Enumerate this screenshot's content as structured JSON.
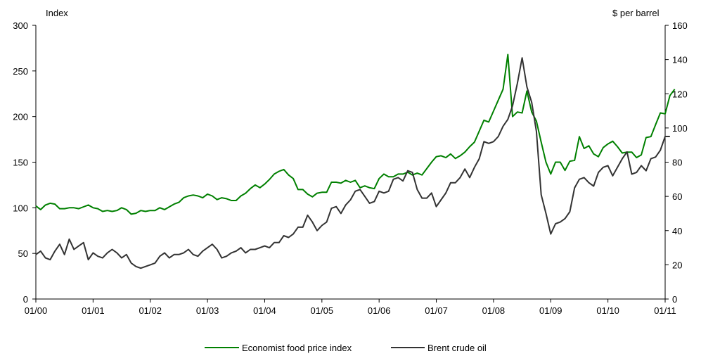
{
  "chart_data": {
    "type": "line",
    "left_axis": {
      "title": "Index",
      "range": [
        0,
        300
      ],
      "ticks": [
        0,
        50,
        100,
        150,
        200,
        250,
        300
      ]
    },
    "right_axis": {
      "title": "$ per barrel",
      "range": [
        0,
        160
      ],
      "ticks": [
        0,
        20,
        40,
        60,
        80,
        100,
        120,
        140,
        160
      ]
    },
    "x_axis": {
      "range": [
        "2000-01",
        "2011-01"
      ],
      "tick_labels": [
        "01/00",
        "01/01",
        "01/02",
        "01/03",
        "01/04",
        "01/05",
        "01/06",
        "01/07",
        "01/08",
        "01/09",
        "01/10",
        "01/11"
      ]
    },
    "grid": false,
    "legend_position": "bottom",
    "series": [
      {
        "name": "Economist food price index",
        "axis": "left",
        "color": "#008000",
        "points": [
          [
            "2000-01",
            102
          ],
          [
            "2000-02",
            98
          ],
          [
            "2000-03",
            103
          ],
          [
            "2000-04",
            105
          ],
          [
            "2000-05",
            104
          ],
          [
            "2000-06",
            99
          ],
          [
            "2000-07",
            99
          ],
          [
            "2000-08",
            100
          ],
          [
            "2000-09",
            100
          ],
          [
            "2000-10",
            99
          ],
          [
            "2000-11",
            101
          ],
          [
            "2000-12",
            103
          ],
          [
            "2001-01",
            100
          ],
          [
            "2001-02",
            99
          ],
          [
            "2001-03",
            96
          ],
          [
            "2001-04",
            97
          ],
          [
            "2001-05",
            96
          ],
          [
            "2001-06",
            97
          ],
          [
            "2001-07",
            100
          ],
          [
            "2001-08",
            98
          ],
          [
            "2001-09",
            93
          ],
          [
            "2001-10",
            94
          ],
          [
            "2001-11",
            97
          ],
          [
            "2001-12",
            96
          ],
          [
            "2002-01",
            97
          ],
          [
            "2002-02",
            97
          ],
          [
            "2002-03",
            100
          ],
          [
            "2002-04",
            98
          ],
          [
            "2002-05",
            101
          ],
          [
            "2002-06",
            104
          ],
          [
            "2002-07",
            106
          ],
          [
            "2002-08",
            111
          ],
          [
            "2002-09",
            113
          ],
          [
            "2002-10",
            114
          ],
          [
            "2002-11",
            113
          ],
          [
            "2002-12",
            111
          ],
          [
            "2003-01",
            115
          ],
          [
            "2003-02",
            113
          ],
          [
            "2003-03",
            109
          ],
          [
            "2003-04",
            111
          ],
          [
            "2003-05",
            110
          ],
          [
            "2003-06",
            108
          ],
          [
            "2003-07",
            108
          ],
          [
            "2003-08",
            113
          ],
          [
            "2003-09",
            116
          ],
          [
            "2003-10",
            121
          ],
          [
            "2003-11",
            125
          ],
          [
            "2003-12",
            122
          ],
          [
            "2004-01",
            126
          ],
          [
            "2004-02",
            131
          ],
          [
            "2004-03",
            137
          ],
          [
            "2004-04",
            140
          ],
          [
            "2004-05",
            142
          ],
          [
            "2004-06",
            136
          ],
          [
            "2004-07",
            132
          ],
          [
            "2004-08",
            120
          ],
          [
            "2004-09",
            120
          ],
          [
            "2004-10",
            115
          ],
          [
            "2004-11",
            112
          ],
          [
            "2004-12",
            116
          ],
          [
            "2005-01",
            117
          ],
          [
            "2005-02",
            117
          ],
          [
            "2005-03",
            128
          ],
          [
            "2005-04",
            128
          ],
          [
            "2005-05",
            127
          ],
          [
            "2005-06",
            130
          ],
          [
            "2005-07",
            128
          ],
          [
            "2005-08",
            130
          ],
          [
            "2005-09",
            122
          ],
          [
            "2005-10",
            124
          ],
          [
            "2005-11",
            122
          ],
          [
            "2005-12",
            121
          ],
          [
            "2006-01",
            132
          ],
          [
            "2006-02",
            137
          ],
          [
            "2006-03",
            134
          ],
          [
            "2006-04",
            134
          ],
          [
            "2006-05",
            137
          ],
          [
            "2006-06",
            137
          ],
          [
            "2006-07",
            139
          ],
          [
            "2006-08",
            136
          ],
          [
            "2006-09",
            138
          ],
          [
            "2006-10",
            136
          ],
          [
            "2006-11",
            143
          ],
          [
            "2006-12",
            150
          ],
          [
            "2007-01",
            156
          ],
          [
            "2007-02",
            157
          ],
          [
            "2007-03",
            155
          ],
          [
            "2007-04",
            159
          ],
          [
            "2007-05",
            154
          ],
          [
            "2007-06",
            157
          ],
          [
            "2007-07",
            161
          ],
          [
            "2007-08",
            167
          ],
          [
            "2007-09",
            172
          ],
          [
            "2007-10",
            184
          ],
          [
            "2007-11",
            196
          ],
          [
            "2007-12",
            194
          ],
          [
            "2008-01",
            206
          ],
          [
            "2008-02",
            218
          ],
          [
            "2008-03",
            230
          ],
          [
            "2008-04",
            268
          ],
          [
            "2008-05",
            200
          ],
          [
            "2008-06",
            205
          ],
          [
            "2008-07",
            204
          ],
          [
            "2008-08",
            228
          ],
          [
            "2008-09",
            205
          ],
          [
            "2008-10",
            195
          ],
          [
            "2008-11",
            172
          ],
          [
            "2008-12",
            150
          ],
          [
            "2009-01",
            137
          ],
          [
            "2009-02",
            150
          ],
          [
            "2009-03",
            150
          ],
          [
            "2009-04",
            141
          ],
          [
            "2009-05",
            151
          ],
          [
            "2009-06",
            152
          ],
          [
            "2009-07",
            178
          ],
          [
            "2009-08",
            165
          ],
          [
            "2009-09",
            168
          ],
          [
            "2009-10",
            159
          ],
          [
            "2009-11",
            156
          ],
          [
            "2009-12",
            166
          ],
          [
            "2010-01",
            170
          ],
          [
            "2010-02",
            173
          ],
          [
            "2010-03",
            167
          ],
          [
            "2010-04",
            160
          ],
          [
            "2010-05",
            161
          ],
          [
            "2010-06",
            161
          ],
          [
            "2010-07",
            155
          ],
          [
            "2010-08",
            158
          ],
          [
            "2010-09",
            177
          ],
          [
            "2010-10",
            178
          ],
          [
            "2010-11",
            191
          ],
          [
            "2010-12",
            204
          ],
          [
            "2011-01",
            203
          ],
          [
            "2011-02",
            223
          ],
          [
            "2011-03",
            230
          ]
        ]
      },
      {
        "name": "Brent crude oil",
        "axis": "right",
        "color": "#333333",
        "points": [
          [
            "2000-01",
            26
          ],
          [
            "2000-02",
            28
          ],
          [
            "2000-03",
            24
          ],
          [
            "2000-04",
            23
          ],
          [
            "2000-05",
            28
          ],
          [
            "2000-06",
            32
          ],
          [
            "2000-07",
            26
          ],
          [
            "2000-08",
            35
          ],
          [
            "2000-09",
            29
          ],
          [
            "2000-10",
            31
          ],
          [
            "2000-11",
            33
          ],
          [
            "2000-12",
            23
          ],
          [
            "2001-01",
            27
          ],
          [
            "2001-02",
            25
          ],
          [
            "2001-03",
            24
          ],
          [
            "2001-04",
            27
          ],
          [
            "2001-05",
            29
          ],
          [
            "2001-06",
            27
          ],
          [
            "2001-07",
            24
          ],
          [
            "2001-08",
            26
          ],
          [
            "2001-09",
            21
          ],
          [
            "2001-10",
            19
          ],
          [
            "2001-11",
            18
          ],
          [
            "2001-12",
            19
          ],
          [
            "2002-01",
            20
          ],
          [
            "2002-02",
            21
          ],
          [
            "2002-03",
            25
          ],
          [
            "2002-04",
            27
          ],
          [
            "2002-05",
            24
          ],
          [
            "2002-06",
            26
          ],
          [
            "2002-07",
            26
          ],
          [
            "2002-08",
            27
          ],
          [
            "2002-09",
            29
          ],
          [
            "2002-10",
            26
          ],
          [
            "2002-11",
            25
          ],
          [
            "2002-12",
            28
          ],
          [
            "2003-01",
            30
          ],
          [
            "2003-02",
            32
          ],
          [
            "2003-03",
            29
          ],
          [
            "2003-04",
            24
          ],
          [
            "2003-05",
            25
          ],
          [
            "2003-06",
            27
          ],
          [
            "2003-07",
            28
          ],
          [
            "2003-08",
            30
          ],
          [
            "2003-09",
            27
          ],
          [
            "2003-10",
            29
          ],
          [
            "2003-11",
            29
          ],
          [
            "2003-12",
            30
          ],
          [
            "2004-01",
            31
          ],
          [
            "2004-02",
            30
          ],
          [
            "2004-03",
            33
          ],
          [
            "2004-04",
            33
          ],
          [
            "2004-05",
            37
          ],
          [
            "2004-06",
            36
          ],
          [
            "2004-07",
            38
          ],
          [
            "2004-08",
            42
          ],
          [
            "2004-09",
            42
          ],
          [
            "2004-10",
            49
          ],
          [
            "2004-11",
            45
          ],
          [
            "2004-12",
            40
          ],
          [
            "2005-01",
            43
          ],
          [
            "2005-02",
            45
          ],
          [
            "2005-03",
            53
          ],
          [
            "2005-04",
            54
          ],
          [
            "2005-05",
            50
          ],
          [
            "2005-06",
            55
          ],
          [
            "2005-07",
            58
          ],
          [
            "2005-08",
            63
          ],
          [
            "2005-09",
            64
          ],
          [
            "2005-10",
            60
          ],
          [
            "2005-11",
            56
          ],
          [
            "2005-12",
            57
          ],
          [
            "2006-01",
            63
          ],
          [
            "2006-02",
            62
          ],
          [
            "2006-03",
            63
          ],
          [
            "2006-04",
            70
          ],
          [
            "2006-05",
            71
          ],
          [
            "2006-06",
            69
          ],
          [
            "2006-07",
            75
          ],
          [
            "2006-08",
            74
          ],
          [
            "2006-09",
            64
          ],
          [
            "2006-10",
            59
          ],
          [
            "2006-11",
            59
          ],
          [
            "2006-12",
            62
          ],
          [
            "2007-01",
            54
          ],
          [
            "2007-02",
            58
          ],
          [
            "2007-03",
            62
          ],
          [
            "2007-04",
            68
          ],
          [
            "2007-05",
            68
          ],
          [
            "2007-06",
            71
          ],
          [
            "2007-07",
            76
          ],
          [
            "2007-08",
            71
          ],
          [
            "2007-09",
            77
          ],
          [
            "2007-10",
            82
          ],
          [
            "2007-11",
            92
          ],
          [
            "2007-12",
            91
          ],
          [
            "2008-01",
            92
          ],
          [
            "2008-02",
            95
          ],
          [
            "2008-03",
            101
          ],
          [
            "2008-04",
            105
          ],
          [
            "2008-05",
            113
          ],
          [
            "2008-06",
            126
          ],
          [
            "2008-07",
            141
          ],
          [
            "2008-08",
            124
          ],
          [
            "2008-09",
            115
          ],
          [
            "2008-10",
            98
          ],
          [
            "2008-11",
            61
          ],
          [
            "2008-12",
            50
          ],
          [
            "2009-01",
            38
          ],
          [
            "2009-02",
            44
          ],
          [
            "2009-03",
            45
          ],
          [
            "2009-04",
            47
          ],
          [
            "2009-05",
            51
          ],
          [
            "2009-06",
            65
          ],
          [
            "2009-07",
            70
          ],
          [
            "2009-08",
            71
          ],
          [
            "2009-09",
            68
          ],
          [
            "2009-10",
            66
          ],
          [
            "2009-11",
            74
          ],
          [
            "2009-12",
            77
          ],
          [
            "2010-01",
            78
          ],
          [
            "2010-02",
            72
          ],
          [
            "2010-03",
            77
          ],
          [
            "2010-04",
            82
          ],
          [
            "2010-05",
            86
          ],
          [
            "2010-06",
            73
          ],
          [
            "2010-07",
            74
          ],
          [
            "2010-08",
            78
          ],
          [
            "2010-09",
            75
          ],
          [
            "2010-10",
            82
          ],
          [
            "2010-11",
            83
          ],
          [
            "2010-12",
            87
          ],
          [
            "2011-01",
            95
          ],
          [
            "2011-02",
            95
          ]
        ]
      }
    ]
  }
}
